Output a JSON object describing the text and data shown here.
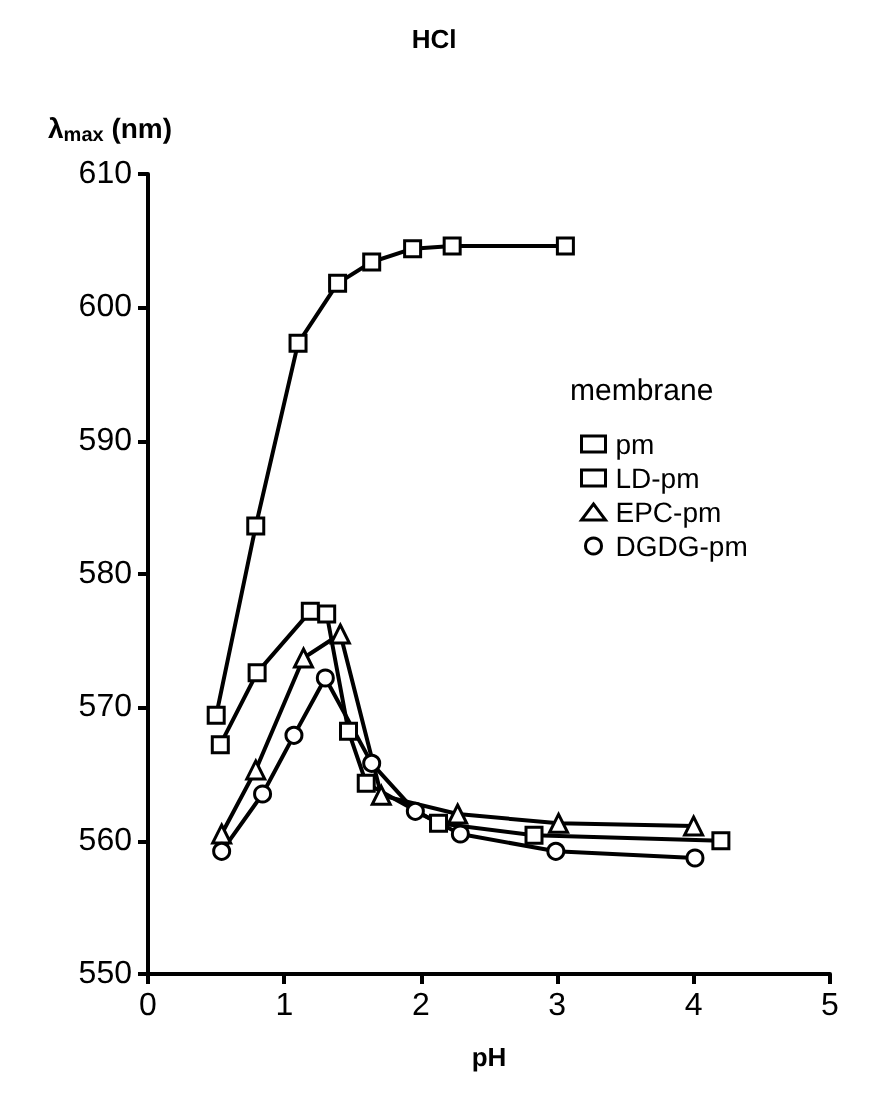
{
  "chart_data": {
    "type": "line",
    "title": "HCl",
    "xlabel": "pH",
    "ylabel": "λ$_{max}$ (nm)",
    "legend_title": "membrane",
    "legend": "right",
    "grid": false,
    "line_style": "solid",
    "xlim": [
      0,
      5
    ],
    "xticks": [
      0,
      1,
      2,
      3,
      4,
      5
    ],
    "ylim": [
      550,
      610
    ],
    "yticks": [
      550,
      560,
      570,
      580,
      590,
      600,
      610
    ],
    "series": [
      {
        "name": "pm",
        "color": "#000000",
        "marker": "square",
        "x": [
          0.5,
          0.79,
          1.1,
          1.39,
          1.64,
          1.94,
          2.23,
          3.06
        ],
        "values": [
          569.4,
          583.6,
          597.3,
          601.8,
          603.4,
          604.4,
          604.6,
          604.6
        ]
      },
      {
        "name": "LD-pm",
        "color": "#000000",
        "marker": "square",
        "x": [
          0.53,
          0.8,
          1.19,
          1.31,
          1.47,
          1.6,
          2.13,
          2.83,
          4.2
        ],
        "values": [
          567.2,
          572.6,
          577.2,
          577,
          568.2,
          564.3,
          561.3,
          560.4,
          560
        ]
      },
      {
        "name": "EPC-pm",
        "color": "#000000",
        "marker": "triangle",
        "x": [
          0.54,
          0.79,
          1.14,
          1.41,
          1.71,
          2.27,
          3.01,
          4.0
        ],
        "values": [
          560.5,
          565.3,
          573.7,
          575.5,
          563.4,
          562,
          561.3,
          561.1
        ]
      },
      {
        "name": "DGDG-pm",
        "color": "#000000",
        "marker": "circle",
        "x": [
          0.54,
          0.84,
          1.07,
          1.3,
          1.64,
          1.96,
          2.29,
          2.99,
          4.01
        ],
        "values": [
          559.2,
          563.5,
          567.9,
          572.2,
          565.8,
          562.2,
          560.5,
          559.2,
          558.7
        ]
      }
    ]
  }
}
